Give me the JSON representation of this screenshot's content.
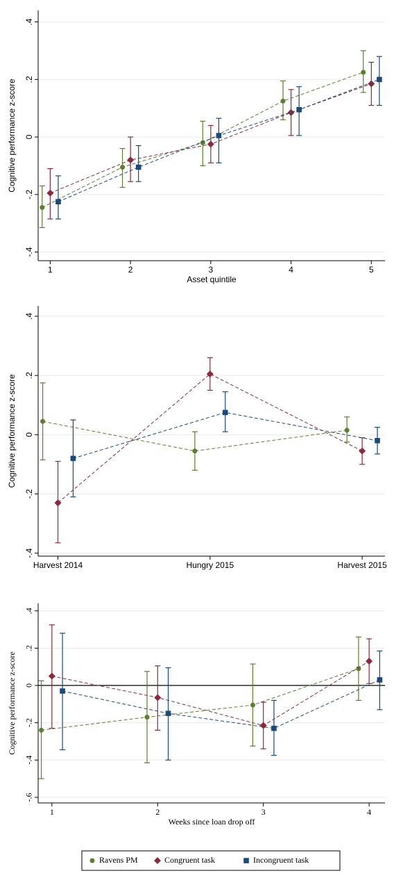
{
  "chart_data": [
    {
      "type": "errorbar",
      "y_label": "Cognitive performance z-score",
      "x_label": "Asset quintile",
      "x": [
        1,
        2,
        3,
        4,
        5
      ],
      "xlim": [
        0.85,
        5.17
      ],
      "xticks": [
        1,
        2,
        3,
        4,
        5
      ],
      "ylim": [
        -0.43,
        0.44
      ],
      "yticks": [
        {
          "value": -0.4,
          "label": "-.4"
        },
        {
          "value": -0.2,
          "label": "-.2"
        },
        0,
        {
          "value": 0.2,
          "label": ".2"
        },
        {
          "value": 0.4,
          "label": ".4"
        }
      ],
      "grid": true,
      "series": [
        {
          "name": "Ravens PM",
          "color": "#5b7f2f",
          "marker": "circle",
          "values": [
            -0.245,
            -0.105,
            -0.02,
            0.125,
            0.225
          ],
          "lower": [
            -0.315,
            -0.175,
            -0.1,
            0.06,
            0.155
          ],
          "upper": [
            -0.17,
            -0.04,
            0.055,
            0.195,
            0.3
          ]
        },
        {
          "name": "Congruent task",
          "color": "#8c2a3c",
          "marker": "diamond",
          "values": [
            -0.195,
            -0.08,
            -0.025,
            0.085,
            0.185
          ],
          "lower": [
            -0.285,
            -0.155,
            -0.09,
            0.005,
            0.11
          ],
          "upper": [
            -0.11,
            0,
            0.04,
            0.165,
            0.26
          ]
        },
        {
          "name": "Incongruent task",
          "color": "#1b4a7a",
          "marker": "square",
          "values": [
            -0.225,
            -0.105,
            0.005,
            0.095,
            0.2
          ],
          "lower": [
            -0.285,
            -0.155,
            -0.09,
            0.005,
            0.11
          ],
          "upper": [
            -0.135,
            -0.03,
            0.065,
            0.175,
            0.28
          ]
        }
      ]
    },
    {
      "type": "errorbar",
      "y_label": "Cognitive performance z-score",
      "categories": [
        "Harvest 2014",
        "Hungry 2015",
        "Harvest 2015"
      ],
      "ylim": [
        -0.41,
        0.435
      ],
      "yticks": [
        {
          "value": -0.4,
          "label": "-.4"
        },
        {
          "value": -0.2,
          "label": "-.2"
        },
        0,
        {
          "value": 0.2,
          "label": ".2"
        },
        {
          "value": 0.4,
          "label": ".4"
        }
      ],
      "grid": true,
      "series": [
        {
          "name": "Ravens PM",
          "color": "#5b7f2f",
          "marker": "circle",
          "values": [
            0.045,
            -0.055,
            0.015
          ],
          "lower": [
            -0.085,
            -0.12,
            -0.025
          ],
          "upper": [
            0.175,
            0.01,
            0.06
          ]
        },
        {
          "name": "Congruent task",
          "color": "#8c2a3c",
          "marker": "diamond",
          "values": [
            -0.23,
            0.205,
            -0.055
          ],
          "lower": [
            -0.365,
            0.15,
            -0.1
          ],
          "upper": [
            -0.09,
            0.26,
            -0.01
          ]
        },
        {
          "name": "Incongruent task",
          "color": "#1b4a7a",
          "marker": "square",
          "values": [
            -0.08,
            0.075,
            -0.02
          ],
          "lower": [
            -0.21,
            0.01,
            -0.065
          ],
          "upper": [
            0.05,
            0.145,
            0.025
          ]
        }
      ]
    },
    {
      "type": "errorbar",
      "y_label": "Cognitive performance z-score",
      "x_label": "Weeks since loan drop off",
      "x": [
        1,
        2,
        3,
        4
      ],
      "xlim": [
        0.87,
        4.15
      ],
      "xticks": [
        1,
        2,
        3,
        4
      ],
      "ylim": [
        -0.63,
        0.44
      ],
      "yticks": [
        {
          "value": -0.6,
          "label": "-.6"
        },
        {
          "value": -0.4,
          "label": "-.4"
        },
        {
          "value": -0.2,
          "label": "-.2"
        },
        0,
        {
          "value": 0.2,
          "label": ".2"
        },
        {
          "value": 0.4,
          "label": ".4"
        }
      ],
      "grid": true,
      "zero_line": true,
      "legend": "bottom",
      "series": [
        {
          "name": "Ravens PM",
          "color": "#5b7f2f",
          "marker": "circle",
          "values": [
            -0.24,
            -0.17,
            -0.105,
            0.09
          ],
          "lower": [
            -0.5,
            -0.415,
            -0.325,
            -0.08
          ],
          "upper": [
            0.025,
            0.075,
            0.115,
            0.26
          ]
        },
        {
          "name": "Congruent task",
          "color": "#8c2a3c",
          "marker": "diamond",
          "values": [
            0.05,
            -0.065,
            -0.215,
            0.13
          ],
          "lower": [
            -0.23,
            -0.24,
            -0.34,
            0.01
          ],
          "upper": [
            0.325,
            0.105,
            -0.09,
            0.25
          ]
        },
        {
          "name": "Incongruent task",
          "color": "#1b4a7a",
          "marker": "square",
          "values": [
            -0.03,
            -0.15,
            -0.23,
            0.03
          ],
          "lower": [
            -0.345,
            -0.4,
            -0.375,
            -0.13
          ],
          "upper": [
            0.28,
            0.095,
            -0.08,
            0.185
          ]
        }
      ]
    }
  ]
}
